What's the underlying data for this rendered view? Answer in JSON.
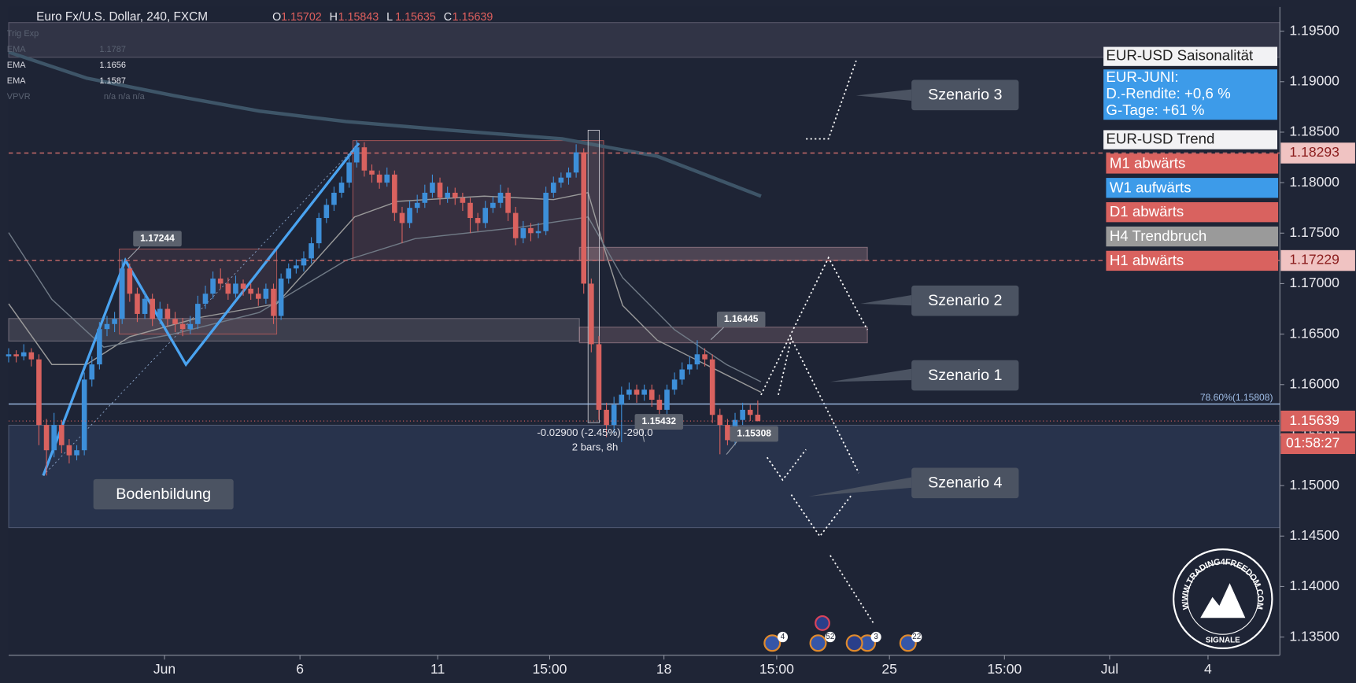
{
  "header": {
    "symbol": "Euro Fx/U.S. Dollar, 240, FXCM",
    "ohlc": [
      {
        "label": "O",
        "value": 1.15702
      },
      {
        "label": "H",
        "value": 1.15843
      },
      {
        "label": "L",
        "value": 1.15635
      },
      {
        "label": "C",
        "value": 1.15639
      }
    ],
    "indicators": [
      {
        "name": "Trig Exp"
      },
      {
        "name": "EMA",
        "value": 1.1787
      },
      {
        "name": "EMA",
        "value": 1.1656
      },
      {
        "name": "EMA",
        "value": 1.1587
      },
      {
        "name": "VPVR",
        "value": "n/a n/a n/a"
      }
    ]
  },
  "chart_data": {
    "type": "candlestick",
    "up_color": "#3d8fd9",
    "down_color": "#d9625f",
    "xlim": [
      0,
      168
    ],
    "xticks": [
      {
        "value": 20.6,
        "label": "Jun"
      },
      {
        "value": 38.5,
        "label": "6"
      },
      {
        "value": 56.7,
        "label": "11"
      },
      {
        "value": 71.5,
        "label": "15:00"
      },
      {
        "value": 86.6,
        "label": "18"
      },
      {
        "value": 101.5,
        "label": "15:00"
      },
      {
        "value": 116.4,
        "label": "25"
      },
      {
        "value": 131.6,
        "label": "15:00"
      },
      {
        "value": 145.5,
        "label": "Jul"
      },
      {
        "value": 158.5,
        "label": "4"
      }
    ],
    "ylim": [
      1.1332,
      1.1974
    ],
    "yticks": [
      {
        "value": 1.195,
        "label": "1.19500"
      },
      {
        "value": 1.19,
        "label": "1.19000"
      },
      {
        "value": 1.185,
        "label": "1.18500"
      },
      {
        "value": 1.18,
        "label": "1.18000"
      },
      {
        "value": 1.175,
        "label": "1.17500"
      },
      {
        "value": 1.17,
        "label": "1.17000"
      },
      {
        "value": 1.165,
        "label": "1.16500"
      },
      {
        "value": 1.16,
        "label": "1.16000"
      },
      {
        "value": 1.155,
        "label": "1.15500"
      },
      {
        "value": 1.15,
        "label": "1.15000"
      },
      {
        "value": 1.145,
        "label": "1.14500"
      },
      {
        "value": 1.14,
        "label": "1.14000"
      },
      {
        "value": 1.135,
        "label": "1.13500"
      }
    ],
    "grid": false,
    "ohlc": [
      [
        1.1628,
        1.1636,
        1.1622,
        1.163
      ],
      [
        1.163,
        1.1634,
        1.1622,
        1.1628
      ],
      [
        1.1628,
        1.164,
        1.1624,
        1.1632
      ],
      [
        1.1632,
        1.1636,
        1.1618,
        1.1625
      ],
      [
        1.1625,
        1.163,
        1.154,
        1.156
      ],
      [
        1.156,
        1.1566,
        1.151,
        1.1535
      ],
      [
        1.1535,
        1.1572,
        1.1528,
        1.156
      ],
      [
        1.156,
        1.1565,
        1.1532,
        1.154
      ],
      [
        1.154,
        1.1546,
        1.1522,
        1.153
      ],
      [
        1.153,
        1.154,
        1.1525,
        1.1535
      ],
      [
        1.1535,
        1.1612,
        1.153,
        1.1605
      ],
      [
        1.1605,
        1.1628,
        1.1598,
        1.162
      ],
      [
        1.162,
        1.1662,
        1.1615,
        1.1655
      ],
      [
        1.1655,
        1.1668,
        1.1648,
        1.166
      ],
      [
        1.166,
        1.1672,
        1.1652,
        1.1665
      ],
      [
        1.1665,
        1.1724,
        1.166,
        1.1715
      ],
      [
        1.1715,
        1.172,
        1.1682,
        1.169
      ],
      [
        1.169,
        1.1696,
        1.1662,
        1.167
      ],
      [
        1.167,
        1.1692,
        1.1665,
        1.1685
      ],
      [
        1.1685,
        1.169,
        1.1658,
        1.1665
      ],
      [
        1.1665,
        1.1682,
        1.166,
        1.1675
      ],
      [
        1.1675,
        1.168,
        1.1658,
        1.1665
      ],
      [
        1.1665,
        1.1672,
        1.1652,
        1.166
      ],
      [
        1.166,
        1.1666,
        1.1648,
        1.1655
      ],
      [
        1.1655,
        1.1668,
        1.165,
        1.166
      ],
      [
        1.166,
        1.1688,
        1.1655,
        1.168
      ],
      [
        1.168,
        1.1698,
        1.1675,
        1.169
      ],
      [
        1.169,
        1.1712,
        1.1685,
        1.1705
      ],
      [
        1.1705,
        1.1715,
        1.1695,
        1.17
      ],
      [
        1.17,
        1.1706,
        1.1684,
        1.169
      ],
      [
        1.169,
        1.1708,
        1.1686,
        1.17
      ],
      [
        1.17,
        1.1704,
        1.1688,
        1.1695
      ],
      [
        1.1695,
        1.17,
        1.1684,
        1.169
      ],
      [
        1.169,
        1.1696,
        1.1678,
        1.1685
      ],
      [
        1.1685,
        1.17,
        1.168,
        1.1695
      ],
      [
        1.1695,
        1.17,
        1.166,
        1.1668
      ],
      [
        1.1668,
        1.171,
        1.1664,
        1.1705
      ],
      [
        1.1705,
        1.172,
        1.17,
        1.1715
      ],
      [
        1.1715,
        1.1724,
        1.171,
        1.1718
      ],
      [
        1.1718,
        1.1732,
        1.1712,
        1.1725
      ],
      [
        1.1725,
        1.1746,
        1.172,
        1.174
      ],
      [
        1.174,
        1.177,
        1.1735,
        1.1765
      ],
      [
        1.1765,
        1.1784,
        1.176,
        1.1778
      ],
      [
        1.1778,
        1.1796,
        1.1772,
        1.179
      ],
      [
        1.179,
        1.1806,
        1.1785,
        1.18
      ],
      [
        1.18,
        1.1828,
        1.1795,
        1.182
      ],
      [
        1.182,
        1.1842,
        1.1815,
        1.1835
      ],
      [
        1.1835,
        1.184,
        1.1806,
        1.1812
      ],
      [
        1.1812,
        1.1818,
        1.18,
        1.1808
      ],
      [
        1.1808,
        1.1812,
        1.1794,
        1.18
      ],
      [
        1.18,
        1.1815,
        1.1796,
        1.1808
      ],
      [
        1.1808,
        1.1812,
        1.1762,
        1.177
      ],
      [
        1.177,
        1.1776,
        1.174,
        1.176
      ],
      [
        1.176,
        1.1782,
        1.1755,
        1.1775
      ],
      [
        1.1775,
        1.1788,
        1.177,
        1.178
      ],
      [
        1.178,
        1.1798,
        1.1775,
        1.179
      ],
      [
        1.179,
        1.1808,
        1.1785,
        1.18
      ],
      [
        1.18,
        1.1805,
        1.1778,
        1.1785
      ],
      [
        1.1785,
        1.1796,
        1.178,
        1.179
      ],
      [
        1.179,
        1.1795,
        1.1778,
        1.1785
      ],
      [
        1.1785,
        1.179,
        1.1772,
        1.178
      ],
      [
        1.178,
        1.1785,
        1.175,
        1.1765
      ],
      [
        1.1765,
        1.177,
        1.1752,
        1.176
      ],
      [
        1.176,
        1.1782,
        1.1755,
        1.1775
      ],
      [
        1.1775,
        1.1786,
        1.177,
        1.178
      ],
      [
        1.178,
        1.1798,
        1.1775,
        1.179
      ],
      [
        1.179,
        1.1795,
        1.1762,
        1.177
      ],
      [
        1.177,
        1.1776,
        1.1738,
        1.1745
      ],
      [
        1.1745,
        1.1762,
        1.174,
        1.1755
      ],
      [
        1.1755,
        1.176,
        1.1742,
        1.175
      ],
      [
        1.175,
        1.176,
        1.1745,
        1.1752
      ],
      [
        1.1752,
        1.1796,
        1.1748,
        1.179
      ],
      [
        1.179,
        1.1806,
        1.1785,
        1.18
      ],
      [
        1.18,
        1.181,
        1.1795,
        1.1805
      ],
      [
        1.1805,
        1.1815,
        1.1798,
        1.181
      ],
      [
        1.181,
        1.1838,
        1.1805,
        1.183
      ],
      [
        1.183,
        1.1834,
        1.169,
        1.17
      ],
      [
        1.17,
        1.1705,
        1.1632,
        1.164
      ],
      [
        1.164,
        1.1648,
        1.1565,
        1.1575
      ],
      [
        1.1575,
        1.1582,
        1.1548,
        1.156
      ],
      [
        1.156,
        1.1588,
        1.1552,
        1.158
      ],
      [
        1.158,
        1.1598,
        1.1543,
        1.159
      ],
      [
        1.159,
        1.1602,
        1.1585,
        1.1595
      ],
      [
        1.1595,
        1.16,
        1.1582,
        1.159
      ],
      [
        1.159,
        1.16,
        1.1584,
        1.1595
      ],
      [
        1.1595,
        1.16,
        1.1578,
        1.1585
      ],
      [
        1.1585,
        1.159,
        1.1568,
        1.1575
      ],
      [
        1.1575,
        1.16,
        1.157,
        1.1595
      ],
      [
        1.1595,
        1.1612,
        1.159,
        1.1605
      ],
      [
        1.1605,
        1.1622,
        1.16,
        1.1615
      ],
      [
        1.1615,
        1.1628,
        1.161,
        1.162
      ],
      [
        1.162,
        1.1644,
        1.1615,
        1.163
      ],
      [
        1.163,
        1.1636,
        1.1618,
        1.1625
      ],
      [
        1.1625,
        1.163,
        1.1562,
        1.157
      ],
      [
        1.157,
        1.1576,
        1.1531,
        1.156
      ],
      [
        1.156,
        1.1566,
        1.154,
        1.1545
      ],
      [
        1.1545,
        1.1572,
        1.154,
        1.1565
      ],
      [
        1.1565,
        1.1582,
        1.156,
        1.1575
      ],
      [
        1.1575,
        1.158,
        1.1564,
        1.157
      ],
      [
        1.15702,
        1.15843,
        1.15635,
        1.15639
      ]
    ],
    "levels": [
      {
        "value": 1.18293,
        "color": "#c96a6a"
      },
      {
        "value": 1.17229,
        "color": "#c96a6a"
      }
    ],
    "fib": {
      "value": 1.15808,
      "label": "78.60%(1.15808)",
      "color": "#9fbde6"
    },
    "last_price": 1.15639,
    "countdown": "01:58:27",
    "price_labels": [
      1.17244,
      1.16445,
      1.15432,
      1.15308
    ],
    "measure": {
      "text": "-0.02900 (-2.45%) -290.0",
      "bars": "2 bars, 8h"
    },
    "scenarios": [
      "Szenario 3",
      "Szenario 2",
      "Szenario 1",
      "Szenario 4",
      "Bodenbildung"
    ],
    "events": [
      "4",
      "52",
      "3",
      "22"
    ]
  },
  "panel": {
    "seasonality": {
      "title": "EUR-USD Saisonalität",
      "lines": [
        "EUR-JUNI:",
        "D.-Rendite: +0,6 %",
        "G-Tage: +61 %"
      ]
    },
    "trend": {
      "title": "EUR-USD Trend",
      "items": [
        {
          "text": "M1 abwärts",
          "color": "#d9625f"
        },
        {
          "text": "W1 aufwärts",
          "color": "#3d9be9"
        },
        {
          "text": "D1 abwärts",
          "color": "#d9625f"
        },
        {
          "text": "H4 Trendbruch",
          "color": "#9a9a9a"
        },
        {
          "text": "H1 abwärts",
          "color": "#d9625f"
        }
      ]
    }
  },
  "logo": {
    "url": "WWW.TRADING4FREEDOM.COM",
    "caption": "SIGNALE"
  }
}
